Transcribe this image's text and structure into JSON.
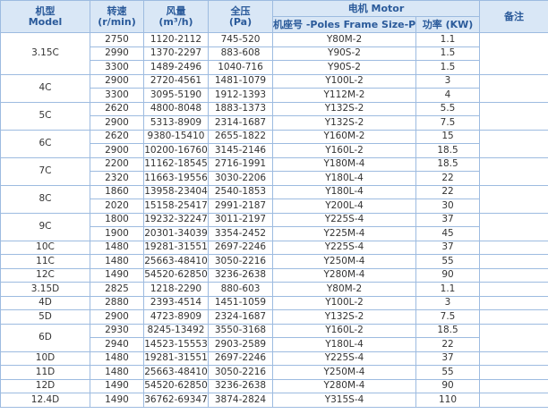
{
  "header": {
    "model": {
      "zh": "机型",
      "en": "Model"
    },
    "speed": {
      "zh": "转速",
      "en": "(r/min)"
    },
    "flow": {
      "zh": "风量",
      "en": "(m³/h)"
    },
    "pressure": {
      "zh": "全压",
      "en": "(Pa)"
    },
    "motor": "电机 Motor",
    "frame": "机座号 -Poles Frame Size-P",
    "power": "功率 (KW)",
    "remark": "备注"
  },
  "groups": [
    {
      "model": "3.15C",
      "rows": [
        [
          "2750",
          "1120-2112",
          "745-520",
          "Y80M-2",
          "1.1"
        ],
        [
          "2990",
          "1370-2297",
          "883-608",
          "Y90S-2",
          "1.5"
        ],
        [
          "3300",
          "1489-2496",
          "1040-716",
          "Y90S-2",
          "1.5"
        ]
      ]
    },
    {
      "model": "4C",
      "rows": [
        [
          "2900",
          "2720-4561",
          "1481-1079",
          "Y100L-2",
          "3"
        ],
        [
          "3300",
          "3095-5190",
          "1912-1393",
          "Y112M-2",
          "4"
        ]
      ]
    },
    {
      "model": "5C",
      "rows": [
        [
          "2620",
          "4800-8048",
          "1883-1373",
          "Y132S-2",
          "5.5"
        ],
        [
          "2900",
          "5313-8909",
          "2314-1687",
          "Y132S-2",
          "7.5"
        ]
      ]
    },
    {
      "model": "6C",
      "rows": [
        [
          "2620",
          "9380-15410",
          "2655-1822",
          "Y160M-2",
          "15"
        ],
        [
          "2900",
          "10200-16760",
          "3145-2146",
          "Y160L-2",
          "18.5"
        ]
      ]
    },
    {
      "model": "7C",
      "rows": [
        [
          "2200",
          "11162-18545",
          "2716-1991",
          "Y180M-4",
          "18.5"
        ],
        [
          "2320",
          "11663-19556",
          "3030-2206",
          "Y180L-4",
          "22"
        ]
      ]
    },
    {
      "model": "8C",
      "rows": [
        [
          "1860",
          "13958-23404",
          "2540-1853",
          "Y180L-4",
          "22"
        ],
        [
          "2020",
          "15158-25417",
          "2991-2187",
          "Y200L-4",
          "30"
        ]
      ]
    },
    {
      "model": "9C",
      "rows": [
        [
          "1800",
          "19232-32247",
          "3011-2197",
          "Y225S-4",
          "37"
        ],
        [
          "1900",
          "20301-34039",
          "3354-2452",
          "Y225M-4",
          "45"
        ]
      ]
    },
    {
      "model": "10C",
      "rows": [
        [
          "1480",
          "19281-31551",
          "2697-2246",
          "Y225S-4",
          "37"
        ]
      ]
    },
    {
      "model": "11C",
      "rows": [
        [
          "1480",
          "25663-48410",
          "3050-2216",
          "Y250M-4",
          "55"
        ]
      ]
    },
    {
      "model": "12C",
      "rows": [
        [
          "1490",
          "54520-62850",
          "3236-2638",
          "Y280M-4",
          "90"
        ]
      ]
    },
    {
      "model": "3.15D",
      "rows": [
        [
          "2825",
          "1218-2290",
          "880-603",
          "Y80M-2",
          "1.1"
        ]
      ]
    },
    {
      "model": "4D",
      "rows": [
        [
          "2880",
          "2393-4514",
          "1451-1059",
          "Y100L-2",
          "3"
        ]
      ]
    },
    {
      "model": "5D",
      "rows": [
        [
          "2900",
          "4723-8909",
          "2324-1687",
          "Y132S-2",
          "7.5"
        ]
      ]
    },
    {
      "model": "6D",
      "rows": [
        [
          "2930",
          "8245-13492",
          "3550-3168",
          "Y160L-2",
          "18.5"
        ],
        [
          "2940",
          "14523-15553",
          "2903-2589",
          "Y180L-4",
          "22"
        ]
      ]
    },
    {
      "model": "10D",
      "rows": [
        [
          "1480",
          "19281-31551",
          "2697-2246",
          "Y225S-4",
          "37"
        ]
      ]
    },
    {
      "model": "11D",
      "rows": [
        [
          "1480",
          "25663-48410",
          "3050-2216",
          "Y250M-4",
          "55"
        ]
      ]
    },
    {
      "model": "12D",
      "rows": [
        [
          "1490",
          "54520-62850",
          "3236-2638",
          "Y280M-4",
          "90"
        ]
      ]
    },
    {
      "model": "12.4D",
      "rows": [
        [
          "1490",
          "36762-69347",
          "3874-2824",
          "Y315S-4",
          "110"
        ]
      ]
    }
  ]
}
